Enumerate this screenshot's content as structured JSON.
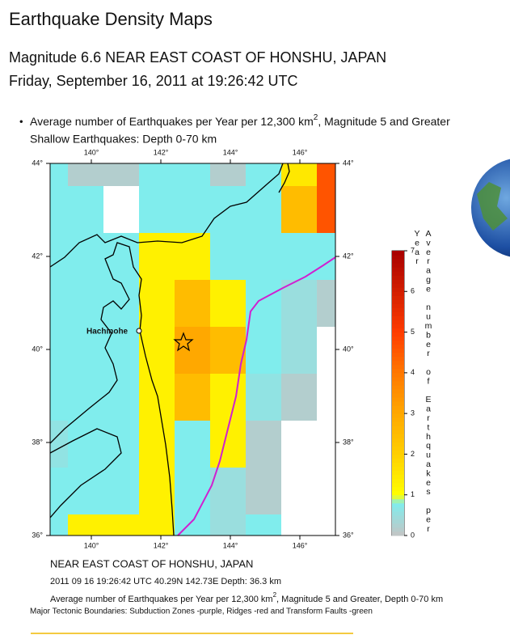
{
  "header": {
    "title": "Earthquake Density Maps",
    "event": "Magnitude 6.6 NEAR EAST COAST OF HONSHU, JAPAN",
    "date": "Friday, September 16, 2011 at 19:26:42 UTC"
  },
  "intro": {
    "bullet": "•",
    "text": "Average number of Earthquakes per Year per 12,300 km",
    "sup": "2",
    "rest": ", Magnitude 5 and Greater",
    "depth": "Shallow Earthquakes: Depth 0-70 km"
  },
  "map": {
    "x_ticks": [
      {
        "value": 140,
        "label": "140°"
      },
      {
        "value": 142,
        "label": "142°"
      },
      {
        "value": 144,
        "label": "144°"
      },
      {
        "value": 146,
        "label": "146°"
      }
    ],
    "y_ticks": [
      {
        "value": 44,
        "label": "44°"
      },
      {
        "value": 42,
        "label": "42°"
      },
      {
        "value": 40,
        "label": "40°"
      },
      {
        "value": 38,
        "label": "38°"
      },
      {
        "value": 36,
        "label": "36°"
      }
    ],
    "place": "Hachinohe",
    "cells": [
      [
        0.8,
        0.2,
        0.2,
        0.8,
        0.8,
        0.2,
        0.8,
        1.5,
        4.6
      ],
      [
        0.8,
        0.8,
        null,
        0.8,
        0.8,
        0.8,
        0.8,
        2.5,
        4.6
      ],
      [
        0.8,
        0.8,
        0.8,
        1.3,
        1.3,
        0.8,
        0.8,
        0.8,
        0.8
      ],
      [
        0.8,
        0.8,
        0.8,
        1.3,
        2.5,
        1.3,
        0.8,
        0.5,
        0.2
      ],
      [
        0.8,
        0.8,
        0.8,
        1.3,
        3,
        2.5,
        0.8,
        0.5,
        null
      ],
      [
        0.8,
        0.8,
        0.8,
        1.3,
        2.5,
        1.3,
        0.6,
        0.2,
        null
      ],
      [
        0.6,
        0.8,
        0.8,
        1.3,
        0.8,
        1.3,
        0.2,
        null,
        null
      ],
      [
        0.8,
        0.8,
        0.8,
        1.3,
        0.8,
        0.5,
        0.2,
        null,
        null
      ],
      [
        0.8,
        1.3,
        1.3,
        1.3,
        0.8,
        0.5,
        0.8,
        null,
        null
      ]
    ],
    "colorscale": [
      [
        0,
        "#c4c4c4"
      ],
      [
        0.8,
        "#80eded"
      ],
      [
        1,
        "#ffff00"
      ],
      [
        2,
        "#ffd000"
      ],
      [
        3,
        "#ffa800"
      ],
      [
        4,
        "#ff7800"
      ],
      [
        5,
        "#ff3c00"
      ],
      [
        7,
        "#a80000"
      ]
    ],
    "colorbar": {
      "ticks": [
        0,
        1,
        2,
        3,
        4,
        5,
        6,
        7
      ],
      "label": "Average number of Earthquakes per Year"
    }
  },
  "caption": {
    "region": "NEAR EAST COAST OF HONSHU, JAPAN",
    "details": "2011 09 16 19:26:42 UTC 40.29N 142.73E Depth: 36.3 km",
    "note": "Average number of Earthquakes per Year per 12,300 km",
    "note_sup": "2",
    "note_rest": ", Magnitude 5 and Greater, Depth 0-70 km",
    "boundaries": "Major Tectonic Boundaries: Subduction Zones -purple, Ridges -red and Transform Faults -green"
  }
}
